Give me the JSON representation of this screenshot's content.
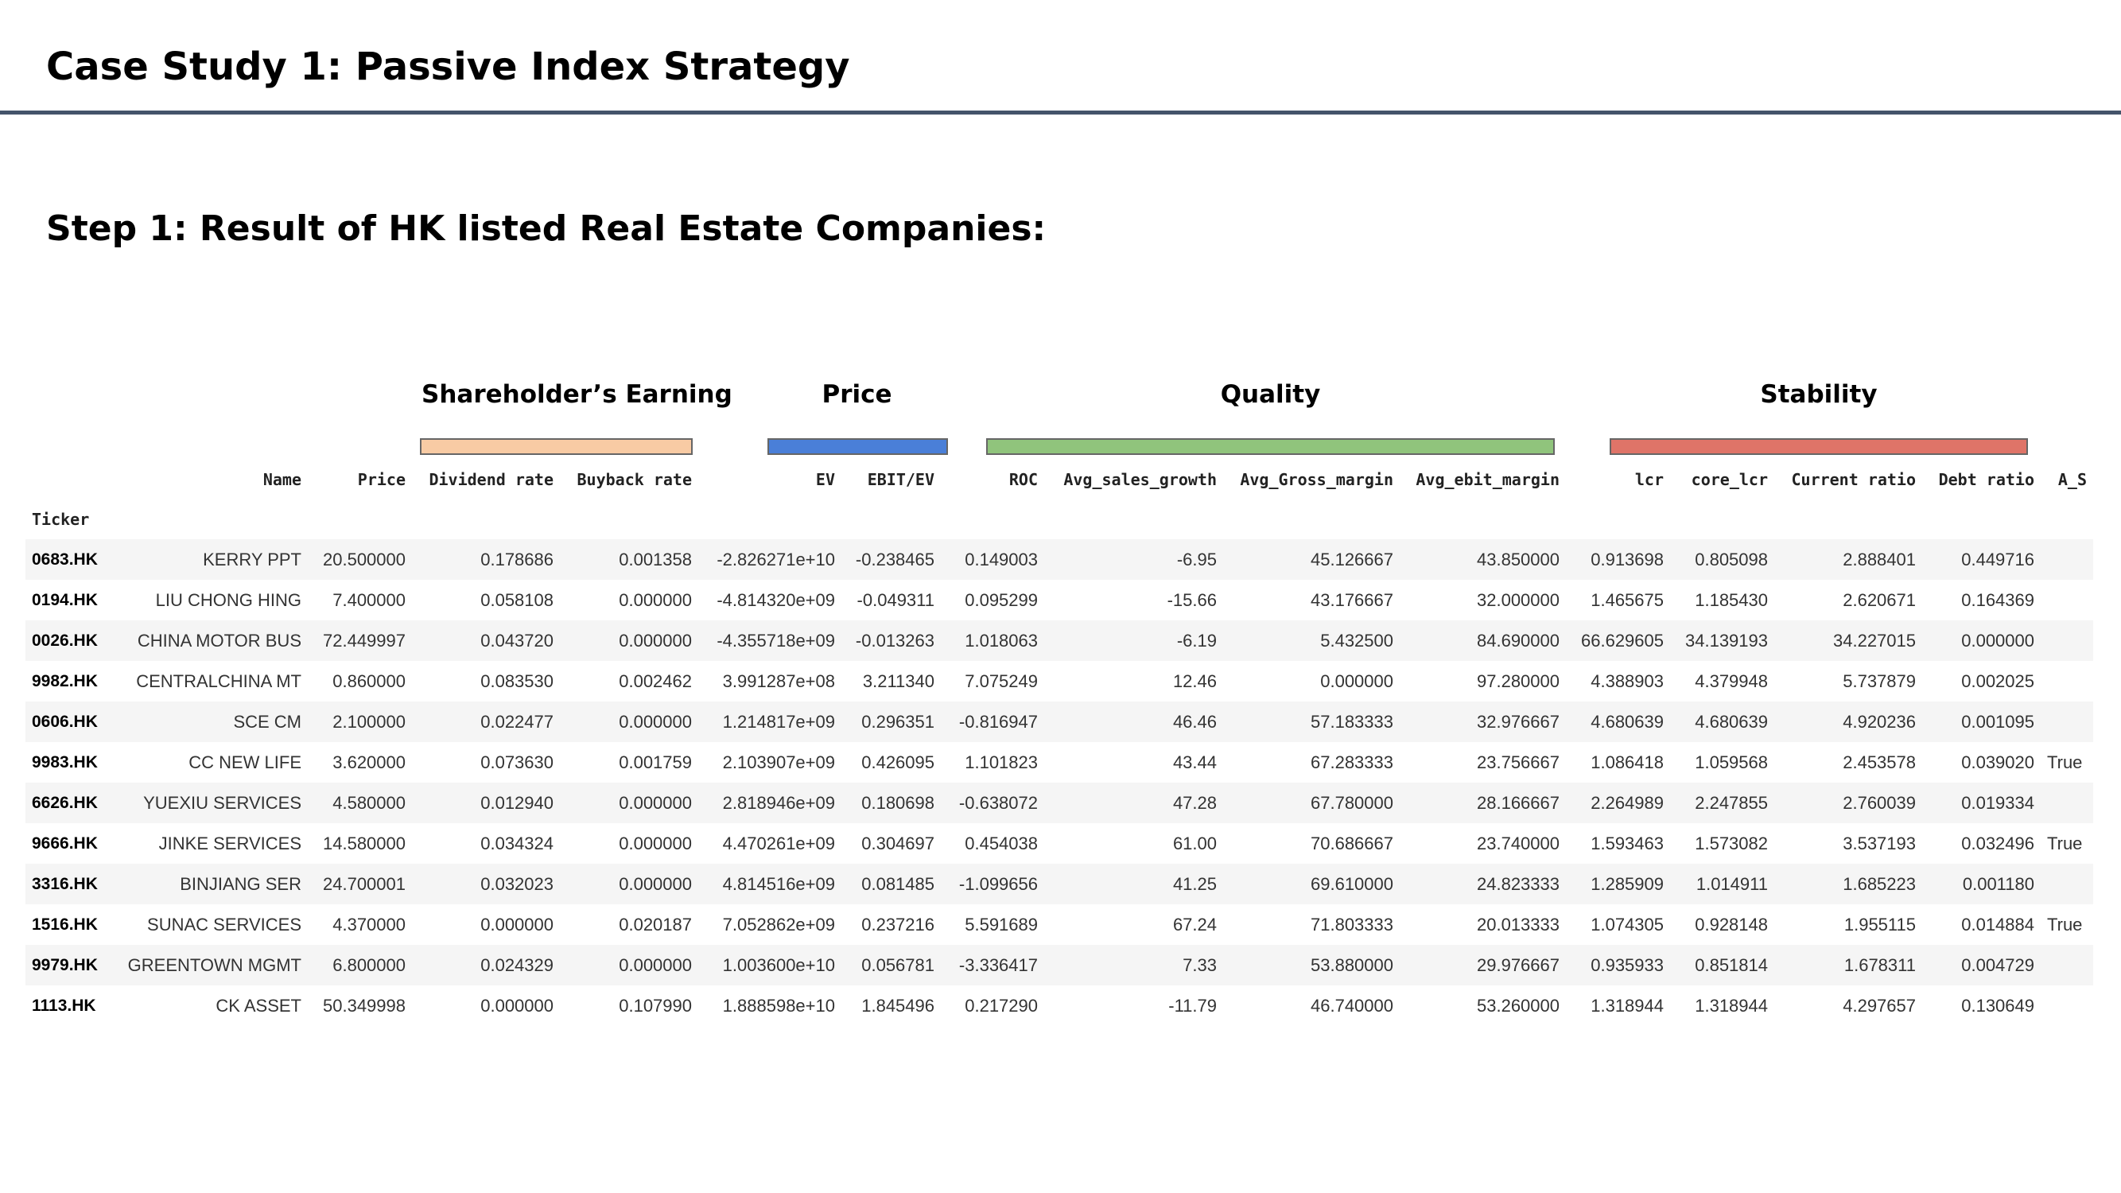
{
  "page": {
    "title": "Case Study 1: Passive Index Strategy",
    "subtitle": "Step 1: Result of HK listed Real Estate Companies:"
  },
  "groups": [
    {
      "label": "Shareholder’s Earning",
      "color": "#f8cba4"
    },
    {
      "label": "Price",
      "color": "#4a7fd8"
    },
    {
      "label": "Quality",
      "color": "#90c47c"
    },
    {
      "label": "Stability",
      "color": "#df7468"
    }
  ],
  "table": {
    "columns": [
      "Name",
      "Price",
      "Dividend rate",
      "Buyback rate",
      "EV",
      "EBIT/EV",
      "ROC",
      "Avg_sales_growth",
      "Avg_Gross_margin",
      "Avg_ebit_margin",
      "lcr",
      "core_lcr",
      "Current ratio",
      "Debt ratio",
      "A_S"
    ],
    "index_name": "Ticker",
    "rows": [
      [
        "0683.HK",
        "KERRY PPT",
        "20.500000",
        "0.178686",
        "0.001358",
        "-2.826271e+10",
        "-0.238465",
        "0.149003",
        "-6.95",
        "45.126667",
        "43.850000",
        "0.913698",
        "0.805098",
        "2.888401",
        "0.449716",
        ""
      ],
      [
        "0194.HK",
        "LIU CHONG HING",
        "7.400000",
        "0.058108",
        "0.000000",
        "-4.814320e+09",
        "-0.049311",
        "0.095299",
        "-15.66",
        "43.176667",
        "32.000000",
        "1.465675",
        "1.185430",
        "2.620671",
        "0.164369",
        ""
      ],
      [
        "0026.HK",
        "CHINA MOTOR BUS",
        "72.449997",
        "0.043720",
        "0.000000",
        "-4.355718e+09",
        "-0.013263",
        "1.018063",
        "-6.19",
        "5.432500",
        "84.690000",
        "66.629605",
        "34.139193",
        "34.227015",
        "0.000000",
        ""
      ],
      [
        "9982.HK",
        "CENTRALCHINA MT",
        "0.860000",
        "0.083530",
        "0.002462",
        "3.991287e+08",
        "3.211340",
        "7.075249",
        "12.46",
        "0.000000",
        "97.280000",
        "4.388903",
        "4.379948",
        "5.737879",
        "0.002025",
        ""
      ],
      [
        "0606.HK",
        "SCE CM",
        "2.100000",
        "0.022477",
        "0.000000",
        "1.214817e+09",
        "0.296351",
        "-0.816947",
        "46.46",
        "57.183333",
        "32.976667",
        "4.680639",
        "4.680639",
        "4.920236",
        "0.001095",
        ""
      ],
      [
        "9983.HK",
        "CC NEW LIFE",
        "3.620000",
        "0.073630",
        "0.001759",
        "2.103907e+09",
        "0.426095",
        "1.101823",
        "43.44",
        "67.283333",
        "23.756667",
        "1.086418",
        "1.059568",
        "2.453578",
        "0.039020",
        "True"
      ],
      [
        "6626.HK",
        "YUEXIU SERVICES",
        "4.580000",
        "0.012940",
        "0.000000",
        "2.818946e+09",
        "0.180698",
        "-0.638072",
        "47.28",
        "67.780000",
        "28.166667",
        "2.264989",
        "2.247855",
        "2.760039",
        "0.019334",
        ""
      ],
      [
        "9666.HK",
        "JINKE SERVICES",
        "14.580000",
        "0.034324",
        "0.000000",
        "4.470261e+09",
        "0.304697",
        "0.454038",
        "61.00",
        "70.686667",
        "23.740000",
        "1.593463",
        "1.573082",
        "3.537193",
        "0.032496",
        "True"
      ],
      [
        "3316.HK",
        "BINJIANG SER",
        "24.700001",
        "0.032023",
        "0.000000",
        "4.814516e+09",
        "0.081485",
        "-1.099656",
        "41.25",
        "69.610000",
        "24.823333",
        "1.285909",
        "1.014911",
        "1.685223",
        "0.001180",
        ""
      ],
      [
        "1516.HK",
        "SUNAC SERVICES",
        "4.370000",
        "0.000000",
        "0.020187",
        "7.052862e+09",
        "0.237216",
        "5.591689",
        "67.24",
        "71.803333",
        "20.013333",
        "1.074305",
        "0.928148",
        "1.955115",
        "0.014884",
        "True"
      ],
      [
        "9979.HK",
        "GREENTOWN MGMT",
        "6.800000",
        "0.024329",
        "0.000000",
        "1.003600e+10",
        "0.056781",
        "-3.336417",
        "7.33",
        "53.880000",
        "29.976667",
        "0.935933",
        "0.851814",
        "1.678311",
        "0.004729",
        ""
      ],
      [
        "1113.HK",
        "CK ASSET",
        "50.349998",
        "0.000000",
        "0.107990",
        "1.888598e+10",
        "1.845496",
        "0.217290",
        "-11.79",
        "46.740000",
        "53.260000",
        "1.318944",
        "1.318944",
        "4.297657",
        "0.130649",
        ""
      ]
    ]
  }
}
